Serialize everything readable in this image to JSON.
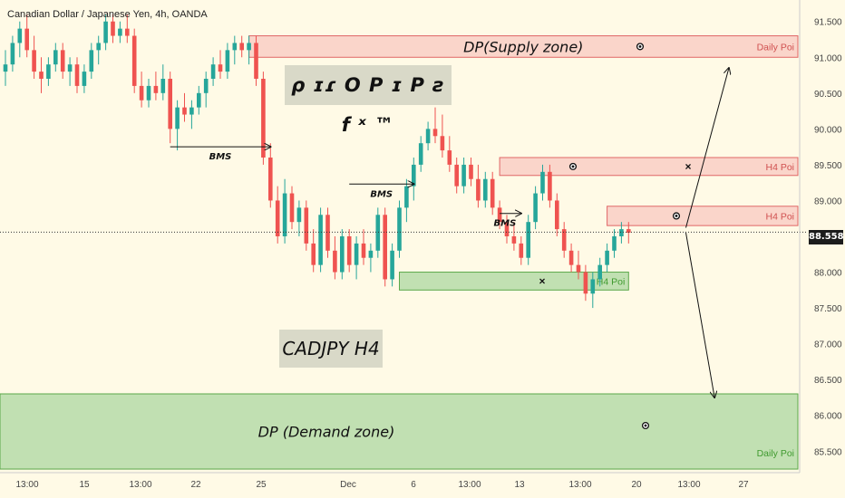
{
  "header": {
    "title": "Canadian Dollar / Japanese Yen, 4h, OANDA"
  },
  "chart_data": {
    "type": "candlestick",
    "symbol": "CADJPY",
    "timeframe": "H4",
    "ylim": [
      85.2,
      91.8
    ],
    "y_ticks": [
      "91.500",
      "91.000",
      "90.500",
      "90.000",
      "89.500",
      "89.000",
      "88.500",
      "88.000",
      "87.500",
      "87.000",
      "86.500",
      "86.000",
      "85.500"
    ],
    "x_ticks": [
      "13:00",
      "15",
      "13:00",
      "22",
      "25",
      "Dec",
      "6",
      "13:00",
      "13",
      "13:00",
      "20",
      "13:00",
      "27"
    ],
    "last_price": "88.558",
    "colors": {
      "up": "#26a69a",
      "down": "#ef5350",
      "supply": "#f6b7b2",
      "demand": "#a7d49b"
    },
    "zones": [
      {
        "label": "DP(Supply zone)",
        "tag": "Daily Poi",
        "kind": "supply",
        "low": 91.0,
        "high": 91.3,
        "from": 34,
        "to": 106,
        "mark": "eye"
      },
      {
        "label": "",
        "tag": "H4 Poi",
        "kind": "supply",
        "low": 89.35,
        "high": 89.6,
        "from": 69,
        "to": 103,
        "mark": "eye+x"
      },
      {
        "label": "",
        "tag": "H4 Poi",
        "kind": "supply",
        "low": 88.65,
        "high": 88.92,
        "from": 84,
        "to": 103,
        "mark": "eye"
      },
      {
        "label": "",
        "tag": "H4 Poi",
        "kind": "demand",
        "low": 87.75,
        "high": 88.0,
        "from": 55,
        "to": 87,
        "mark": "x"
      },
      {
        "label": "DP (Demand zone)",
        "tag": "Daily Poi",
        "kind": "demand",
        "low": 85.25,
        "high": 86.3,
        "from": 0,
        "to": 103,
        "mark": "eye"
      }
    ],
    "annotations": [
      {
        "text": "BMS",
        "x1": 23,
        "x2": 37,
        "y": 89.75
      },
      {
        "text": "BMS",
        "x1": 48,
        "x2": 57,
        "y": 89.23
      },
      {
        "text": "BMS",
        "x1": 69,
        "x2": 72,
        "y": 88.82
      }
    ],
    "projections": [
      {
        "from": [
          95,
          88.62
        ],
        "to": [
          101,
          90.85
        ]
      },
      {
        "from": [
          95,
          88.55
        ],
        "to": [
          99,
          86.25
        ]
      }
    ],
    "candles": [
      [
        90.8,
        91.1,
        90.6,
        90.9
      ],
      [
        90.9,
        91.3,
        90.8,
        91.2
      ],
      [
        91.2,
        91.5,
        91.0,
        91.4
      ],
      [
        91.4,
        91.6,
        91.0,
        91.1
      ],
      [
        91.1,
        91.3,
        90.7,
        90.8
      ],
      [
        90.8,
        91.0,
        90.5,
        90.7
      ],
      [
        90.7,
        91.0,
        90.6,
        90.9
      ],
      [
        90.9,
        91.2,
        90.8,
        91.1
      ],
      [
        91.1,
        91.2,
        90.7,
        90.8
      ],
      [
        90.8,
        91.0,
        90.6,
        90.9
      ],
      [
        90.9,
        91.0,
        90.5,
        90.6
      ],
      [
        90.6,
        90.9,
        90.5,
        90.8
      ],
      [
        90.8,
        91.2,
        90.7,
        91.1
      ],
      [
        91.1,
        91.3,
        90.9,
        91.2
      ],
      [
        91.2,
        91.6,
        91.1,
        91.5
      ],
      [
        91.5,
        91.6,
        91.2,
        91.3
      ],
      [
        91.3,
        91.5,
        91.2,
        91.4
      ],
      [
        91.4,
        91.6,
        91.2,
        91.3
      ],
      [
        91.3,
        91.4,
        90.5,
        90.6
      ],
      [
        90.6,
        90.8,
        90.3,
        90.4
      ],
      [
        90.4,
        90.7,
        90.3,
        90.6
      ],
      [
        90.6,
        90.8,
        90.4,
        90.5
      ],
      [
        90.5,
        90.9,
        90.4,
        90.7
      ],
      [
        90.7,
        90.8,
        89.8,
        90.0
      ],
      [
        90.0,
        90.4,
        89.7,
        90.3
      ],
      [
        90.3,
        90.5,
        90.1,
        90.2
      ],
      [
        90.2,
        90.4,
        90.0,
        90.3
      ],
      [
        90.3,
        90.6,
        90.2,
        90.5
      ],
      [
        90.5,
        90.8,
        90.3,
        90.7
      ],
      [
        90.7,
        91.0,
        90.6,
        90.9
      ],
      [
        90.9,
        91.1,
        90.7,
        90.8
      ],
      [
        90.8,
        91.2,
        90.7,
        91.1
      ],
      [
        91.1,
        91.3,
        90.9,
        91.2
      ],
      [
        91.2,
        91.3,
        91.0,
        91.1
      ],
      [
        91.1,
        91.3,
        90.9,
        91.2
      ],
      [
        91.2,
        91.3,
        90.6,
        90.7
      ],
      [
        90.7,
        90.8,
        89.5,
        89.6
      ],
      [
        89.6,
        89.8,
        88.9,
        89.0
      ],
      [
        89.0,
        89.2,
        88.4,
        88.5
      ],
      [
        88.5,
        89.3,
        88.4,
        89.1
      ],
      [
        89.1,
        89.2,
        88.6,
        88.7
      ],
      [
        88.7,
        89.0,
        88.5,
        88.9
      ],
      [
        88.9,
        89.0,
        88.3,
        88.4
      ],
      [
        88.4,
        88.6,
        88.0,
        88.1
      ],
      [
        88.1,
        88.9,
        88.0,
        88.8
      ],
      [
        88.8,
        88.9,
        88.2,
        88.3
      ],
      [
        88.3,
        88.5,
        87.9,
        88.0
      ],
      [
        88.0,
        88.6,
        87.9,
        88.5
      ],
      [
        88.5,
        88.6,
        88.0,
        88.1
      ],
      [
        88.1,
        88.5,
        87.9,
        88.4
      ],
      [
        88.4,
        88.6,
        88.1,
        88.2
      ],
      [
        88.2,
        88.4,
        88.0,
        88.3
      ],
      [
        88.3,
        88.9,
        88.2,
        88.8
      ],
      [
        88.8,
        88.9,
        87.8,
        87.9
      ],
      [
        87.9,
        88.4,
        87.8,
        88.3
      ],
      [
        88.3,
        89.0,
        88.2,
        88.9
      ],
      [
        88.9,
        89.3,
        88.7,
        89.2
      ],
      [
        89.2,
        89.6,
        89.0,
        89.5
      ],
      [
        89.5,
        89.9,
        89.4,
        89.8
      ],
      [
        89.8,
        90.1,
        89.7,
        90.0
      ],
      [
        90.0,
        90.3,
        89.8,
        89.9
      ],
      [
        89.9,
        90.2,
        89.6,
        89.7
      ],
      [
        89.7,
        89.9,
        89.4,
        89.5
      ],
      [
        89.5,
        89.6,
        89.1,
        89.2
      ],
      [
        89.2,
        89.6,
        89.1,
        89.5
      ],
      [
        89.5,
        89.6,
        89.2,
        89.3
      ],
      [
        89.3,
        89.5,
        88.9,
        89.0
      ],
      [
        89.0,
        89.4,
        88.9,
        89.3
      ],
      [
        89.3,
        89.4,
        88.8,
        88.9
      ],
      [
        88.9,
        89.0,
        88.6,
        88.7
      ],
      [
        88.7,
        88.8,
        88.4,
        88.5
      ],
      [
        88.5,
        88.7,
        88.3,
        88.4
      ],
      [
        88.4,
        88.5,
        88.1,
        88.2
      ],
      [
        88.2,
        88.8,
        88.1,
        88.7
      ],
      [
        88.7,
        89.2,
        88.6,
        89.1
      ],
      [
        89.1,
        89.5,
        89.0,
        89.4
      ],
      [
        89.4,
        89.5,
        88.9,
        89.0
      ],
      [
        89.0,
        89.1,
        88.5,
        88.6
      ],
      [
        88.6,
        88.7,
        88.2,
        88.3
      ],
      [
        88.3,
        88.4,
        88.0,
        88.1
      ],
      [
        88.1,
        88.3,
        87.9,
        88.0
      ],
      [
        88.0,
        88.1,
        87.6,
        87.7
      ],
      [
        87.7,
        88.0,
        87.5,
        87.9
      ],
      [
        87.9,
        88.2,
        87.8,
        88.1
      ],
      [
        88.1,
        88.4,
        88.0,
        88.3
      ],
      [
        88.3,
        88.6,
        88.2,
        88.5
      ],
      [
        88.5,
        88.7,
        88.4,
        88.6
      ],
      [
        88.6,
        88.7,
        88.4,
        88.55
      ]
    ]
  }
}
